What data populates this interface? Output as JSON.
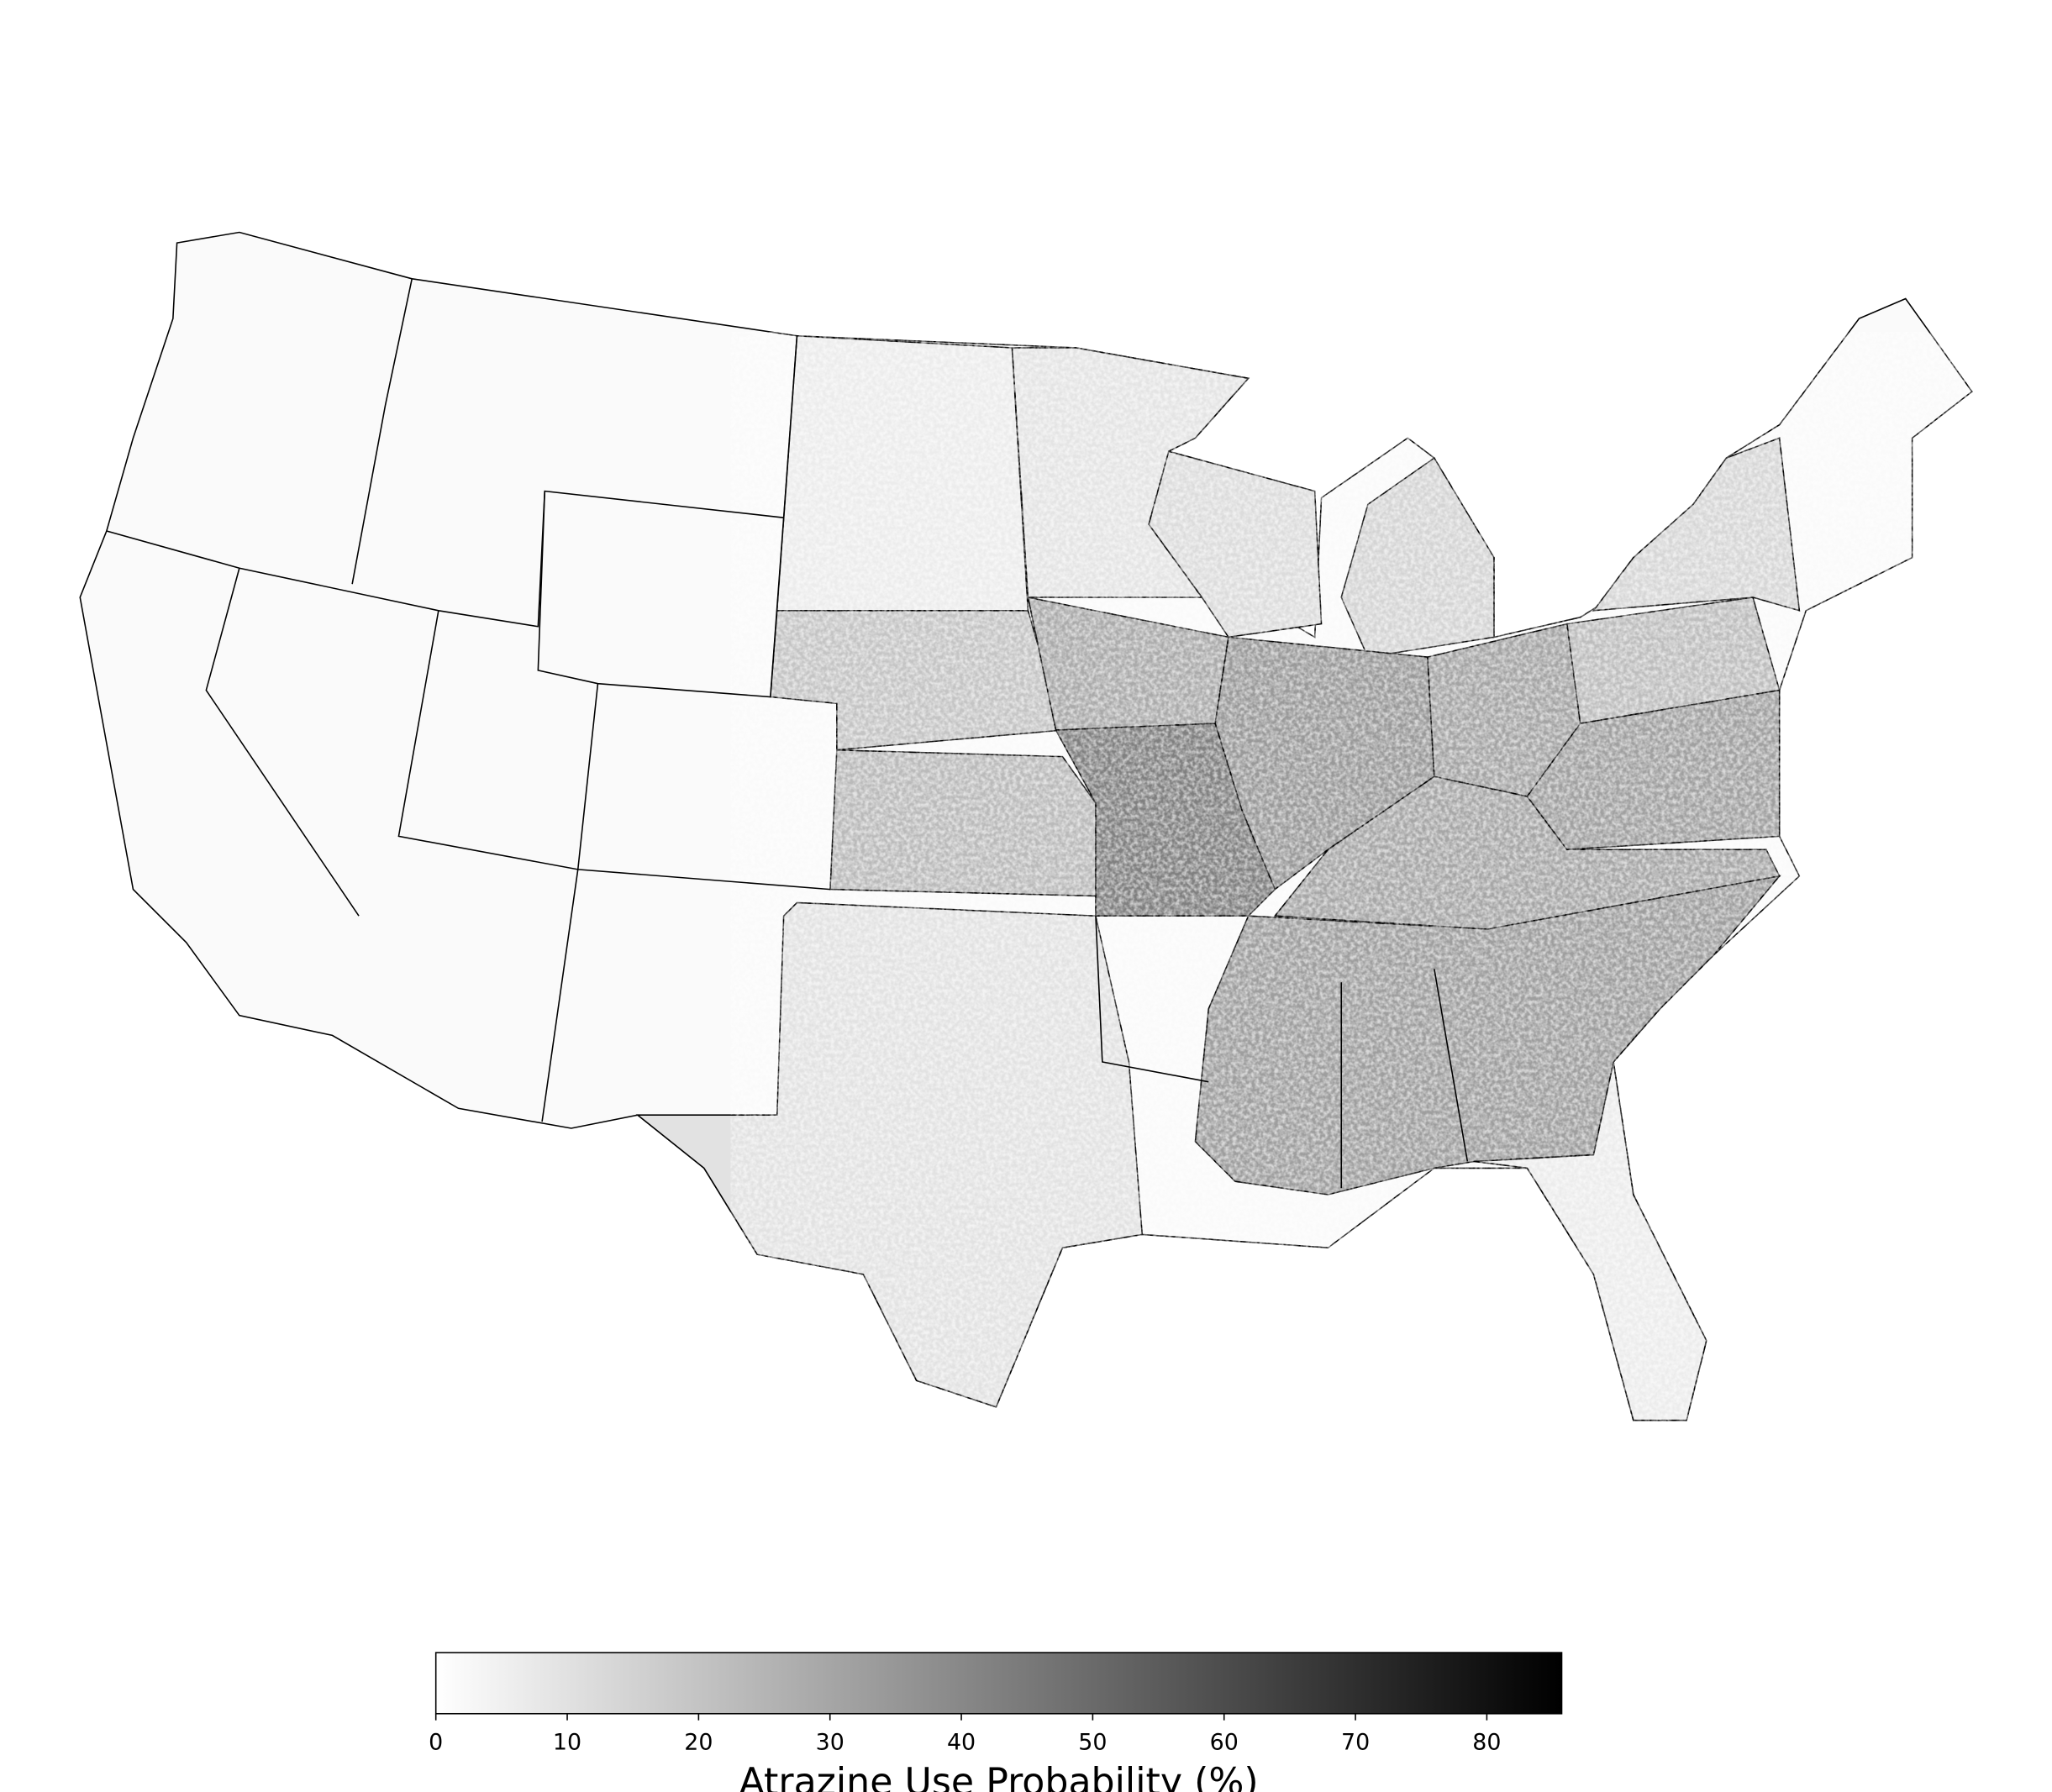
{
  "chart_data": {
    "type": "colorbar-map",
    "colorbar": {
      "label": "Atrazine Use Probability (%)",
      "lim": [
        0,
        85.7
      ],
      "ticks": [
        0,
        10,
        20,
        30,
        40,
        50,
        60,
        70,
        80
      ],
      "colormap": [
        "#ffffff",
        "#000000"
      ]
    }
  }
}
